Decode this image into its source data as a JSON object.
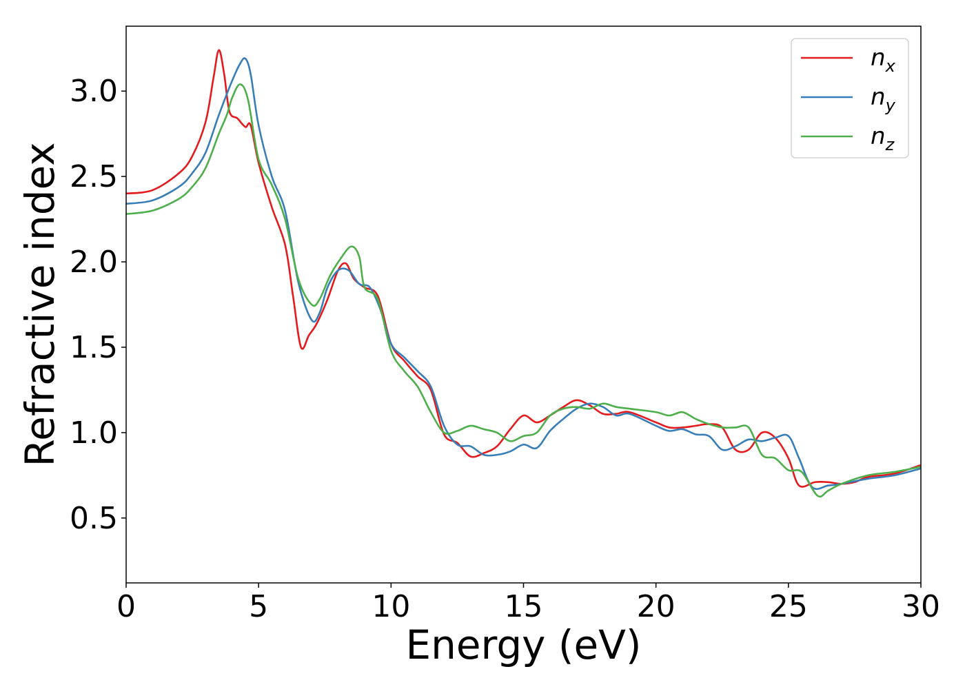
{
  "chart_data": {
    "type": "line",
    "xlabel": "Energy (eV)",
    "ylabel": "Refractive index",
    "xlim": [
      0,
      30
    ],
    "ylim": [
      0.12,
      3.38
    ],
    "xticks": [
      0,
      5,
      10,
      15,
      20,
      25,
      30
    ],
    "yticks": [
      0.5,
      1.0,
      1.5,
      2.0,
      2.5,
      3.0
    ],
    "xtick_labels": [
      "0",
      "5",
      "10",
      "15",
      "20",
      "25",
      "30"
    ],
    "ytick_labels": [
      "0.5",
      "1.0",
      "1.5",
      "2.0",
      "2.5",
      "3.0"
    ],
    "grid": false,
    "legend_position": "top-right",
    "series": [
      {
        "name": "n",
        "subscript": "x",
        "color": "#e41a1c",
        "points": [
          [
            0,
            2.4
          ],
          [
            1,
            2.42
          ],
          [
            2,
            2.52
          ],
          [
            2.5,
            2.62
          ],
          [
            3,
            2.82
          ],
          [
            3.3,
            3.08
          ],
          [
            3.5,
            3.24
          ],
          [
            3.7,
            3.1
          ],
          [
            3.9,
            2.88
          ],
          [
            4.2,
            2.84
          ],
          [
            4.5,
            2.79
          ],
          [
            4.7,
            2.8
          ],
          [
            5,
            2.58
          ],
          [
            5.5,
            2.32
          ],
          [
            6,
            2.1
          ],
          [
            6.3,
            1.8
          ],
          [
            6.6,
            1.5
          ],
          [
            6.9,
            1.57
          ],
          [
            7.2,
            1.64
          ],
          [
            7.6,
            1.78
          ],
          [
            8.0,
            1.95
          ],
          [
            8.3,
            1.99
          ],
          [
            8.6,
            1.9
          ],
          [
            9,
            1.85
          ],
          [
            9.5,
            1.8
          ],
          [
            10,
            1.52
          ],
          [
            10.5,
            1.42
          ],
          [
            11,
            1.33
          ],
          [
            11.5,
            1.25
          ],
          [
            12,
            0.99
          ],
          [
            12.5,
            0.94
          ],
          [
            13,
            0.86
          ],
          [
            13.5,
            0.88
          ],
          [
            14,
            0.92
          ],
          [
            14.5,
            1.02
          ],
          [
            15,
            1.1
          ],
          [
            15.5,
            1.06
          ],
          [
            16,
            1.1
          ],
          [
            16.5,
            1.15
          ],
          [
            17,
            1.19
          ],
          [
            17.5,
            1.16
          ],
          [
            18,
            1.11
          ],
          [
            18.5,
            1.11
          ],
          [
            19,
            1.12
          ],
          [
            20,
            1.06
          ],
          [
            20.5,
            1.03
          ],
          [
            21,
            1.03
          ],
          [
            21.5,
            1.04
          ],
          [
            22,
            1.05
          ],
          [
            22.5,
            1.03
          ],
          [
            23,
            0.9
          ],
          [
            23.5,
            0.9
          ],
          [
            24,
            1.0
          ],
          [
            24.5,
            0.97
          ],
          [
            25,
            0.85
          ],
          [
            25.4,
            0.69
          ],
          [
            26,
            0.71
          ],
          [
            26.5,
            0.71
          ],
          [
            27,
            0.7
          ],
          [
            27.5,
            0.71
          ],
          [
            28,
            0.74
          ],
          [
            29,
            0.76
          ],
          [
            30,
            0.81
          ]
        ]
      },
      {
        "name": "n",
        "subscript": "y",
        "color": "#377eb8",
        "points": [
          [
            0,
            2.34
          ],
          [
            1,
            2.36
          ],
          [
            2,
            2.44
          ],
          [
            2.5,
            2.52
          ],
          [
            3,
            2.64
          ],
          [
            3.5,
            2.86
          ],
          [
            4,
            3.06
          ],
          [
            4.3,
            3.16
          ],
          [
            4.5,
            3.19
          ],
          [
            4.7,
            3.1
          ],
          [
            5,
            2.8
          ],
          [
            5.5,
            2.5
          ],
          [
            6,
            2.3
          ],
          [
            6.5,
            1.88
          ],
          [
            7,
            1.66
          ],
          [
            7.3,
            1.7
          ],
          [
            7.6,
            1.85
          ],
          [
            8,
            1.95
          ],
          [
            8.4,
            1.95
          ],
          [
            8.8,
            1.87
          ],
          [
            9.2,
            1.85
          ],
          [
            9.6,
            1.72
          ],
          [
            10,
            1.52
          ],
          [
            10.5,
            1.44
          ],
          [
            11,
            1.36
          ],
          [
            11.5,
            1.27
          ],
          [
            12,
            1.04
          ],
          [
            12.5,
            0.93
          ],
          [
            13,
            0.92
          ],
          [
            13.5,
            0.87
          ],
          [
            14,
            0.87
          ],
          [
            14.5,
            0.89
          ],
          [
            15,
            0.93
          ],
          [
            15.5,
            0.91
          ],
          [
            16,
            1.01
          ],
          [
            16.5,
            1.08
          ],
          [
            17,
            1.14
          ],
          [
            17.5,
            1.17
          ],
          [
            18,
            1.15
          ],
          [
            18.5,
            1.1
          ],
          [
            19,
            1.11
          ],
          [
            20,
            1.04
          ],
          [
            20.5,
            1.01
          ],
          [
            21,
            1.02
          ],
          [
            21.5,
            0.99
          ],
          [
            22,
            0.98
          ],
          [
            22.5,
            0.9
          ],
          [
            23,
            0.92
          ],
          [
            23.5,
            0.96
          ],
          [
            24,
            0.95
          ],
          [
            24.5,
            0.97
          ],
          [
            25,
            0.98
          ],
          [
            25.4,
            0.85
          ],
          [
            25.9,
            0.68
          ],
          [
            26.5,
            0.69
          ],
          [
            27,
            0.7
          ],
          [
            28,
            0.73
          ],
          [
            29,
            0.75
          ],
          [
            30,
            0.79
          ]
        ]
      },
      {
        "name": "n",
        "subscript": "z",
        "color": "#4daf4a",
        "points": [
          [
            0,
            2.28
          ],
          [
            1,
            2.3
          ],
          [
            2,
            2.37
          ],
          [
            2.5,
            2.44
          ],
          [
            3,
            2.55
          ],
          [
            3.5,
            2.75
          ],
          [
            3.8,
            2.86
          ],
          [
            4.0,
            2.96
          ],
          [
            4.3,
            3.04
          ],
          [
            4.6,
            2.95
          ],
          [
            5,
            2.6
          ],
          [
            5.5,
            2.45
          ],
          [
            6,
            2.25
          ],
          [
            6.5,
            1.9
          ],
          [
            7,
            1.75
          ],
          [
            7.3,
            1.78
          ],
          [
            7.7,
            1.92
          ],
          [
            8.1,
            2.02
          ],
          [
            8.5,
            2.09
          ],
          [
            8.8,
            2.03
          ],
          [
            9,
            1.85
          ],
          [
            9.5,
            1.78
          ],
          [
            10,
            1.48
          ],
          [
            10.5,
            1.36
          ],
          [
            11,
            1.27
          ],
          [
            11.5,
            1.12
          ],
          [
            12,
            1.0
          ],
          [
            12.5,
            1.01
          ],
          [
            13,
            1.04
          ],
          [
            13.5,
            1.02
          ],
          [
            14,
            1.0
          ],
          [
            14.5,
            0.95
          ],
          [
            15,
            0.98
          ],
          [
            15.5,
            1.0
          ],
          [
            16,
            1.1
          ],
          [
            16.5,
            1.14
          ],
          [
            17,
            1.15
          ],
          [
            17.5,
            1.14
          ],
          [
            18,
            1.17
          ],
          [
            18.5,
            1.15
          ],
          [
            19,
            1.14
          ],
          [
            20,
            1.12
          ],
          [
            20.5,
            1.1
          ],
          [
            21,
            1.12
          ],
          [
            21.5,
            1.08
          ],
          [
            22,
            1.05
          ],
          [
            22.5,
            1.03
          ],
          [
            23,
            1.03
          ],
          [
            23.5,
            1.03
          ],
          [
            24,
            0.87
          ],
          [
            24.5,
            0.85
          ],
          [
            25,
            0.78
          ],
          [
            25.5,
            0.77
          ],
          [
            26.1,
            0.63
          ],
          [
            26.5,
            0.66
          ],
          [
            27,
            0.7
          ],
          [
            28,
            0.75
          ],
          [
            29,
            0.77
          ],
          [
            30,
            0.8
          ]
        ]
      }
    ]
  }
}
